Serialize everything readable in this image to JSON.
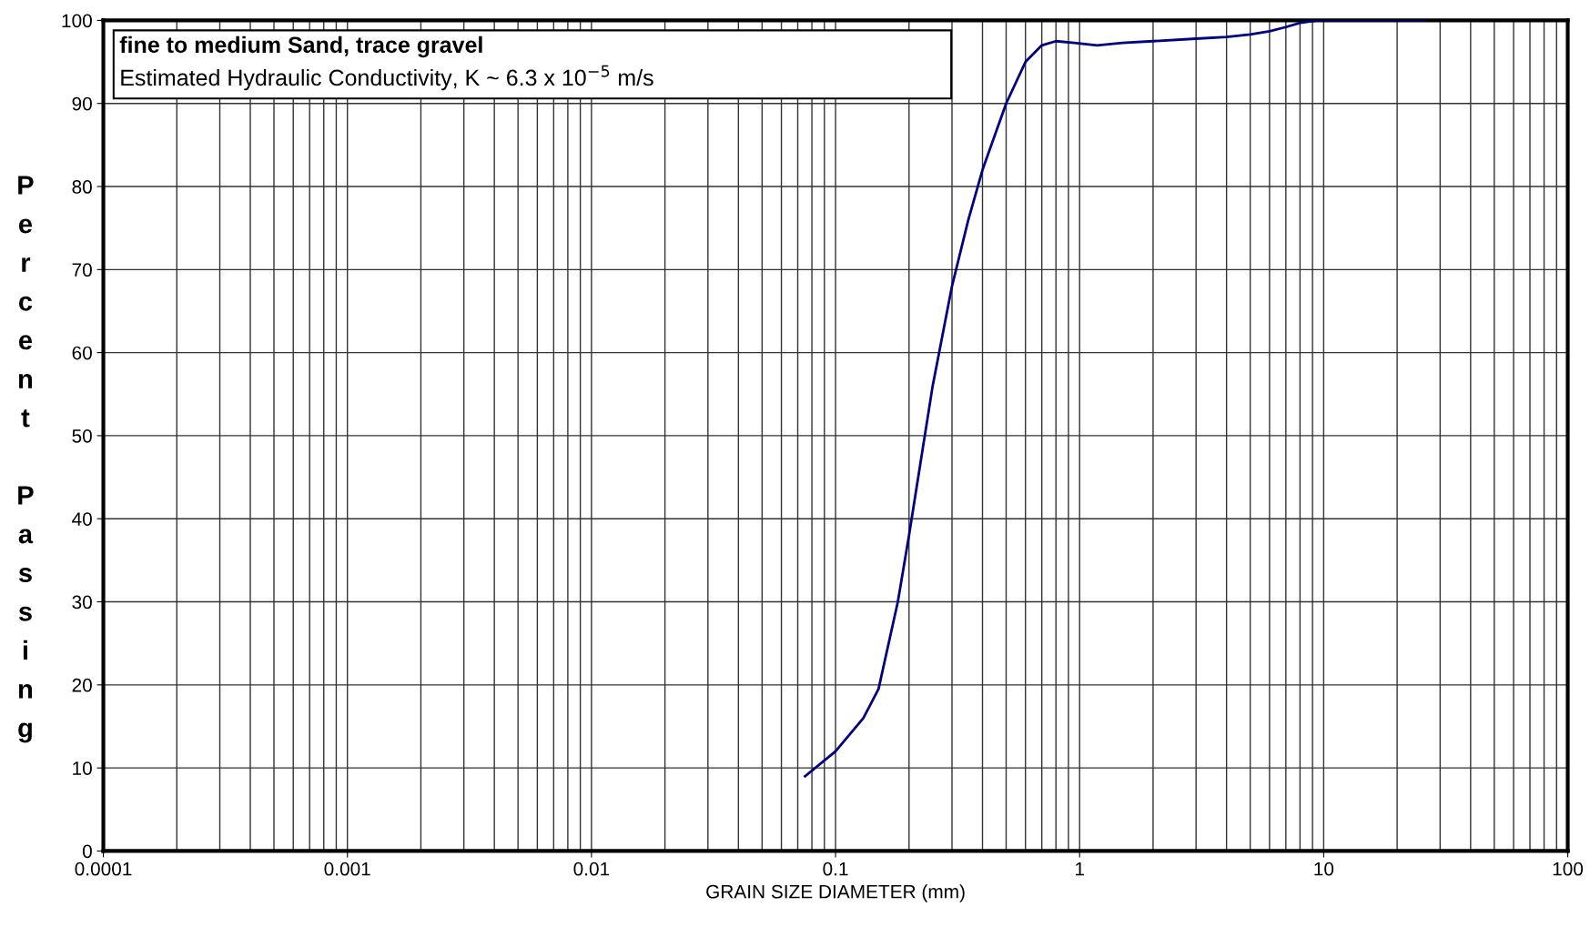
{
  "chart_data": {
    "type": "line",
    "xlabel": "GRAIN SIZE DIAMETER (mm)",
    "ylabel": "Percent Passing",
    "annotations": [
      "fine to medium Sand, trace gravel",
      "Estimated Hydraulic Conductivity, K ~ 6.3 x 10$^{−5}$ m/s"
    ],
    "series": [
      {
        "color": "#000080",
        "x": [
          0.075,
          0.1,
          0.13,
          0.15,
          0.18,
          0.2,
          0.25,
          0.3,
          0.35,
          0.4,
          0.5,
          0.6,
          0.7,
          0.8,
          0.95,
          1.18,
          1.5,
          2,
          3,
          4,
          5,
          6,
          7,
          8,
          9.5,
          15,
          26
        ],
        "values": [
          9,
          12,
          16,
          19.5,
          30,
          38,
          56,
          68,
          76,
          82,
          90,
          95,
          97,
          97.5,
          97.3,
          97,
          97.3,
          97.5,
          97.8,
          98,
          98.3,
          98.7,
          99.2,
          99.7,
          100,
          100,
          100
        ]
      }
    ],
    "log": "x",
    "xlim": [
      0.0001,
      100
    ],
    "ylim": [
      0,
      100
    ],
    "xticks": [
      0.0001,
      0.001,
      0.01,
      0.1,
      1,
      10,
      100
    ],
    "yticks": [
      0,
      10,
      20,
      30,
      40,
      50,
      60,
      70,
      80,
      90,
      100
    ],
    "grid": true,
    "marker": "none",
    "line_style": "solid",
    "legend": false
  }
}
